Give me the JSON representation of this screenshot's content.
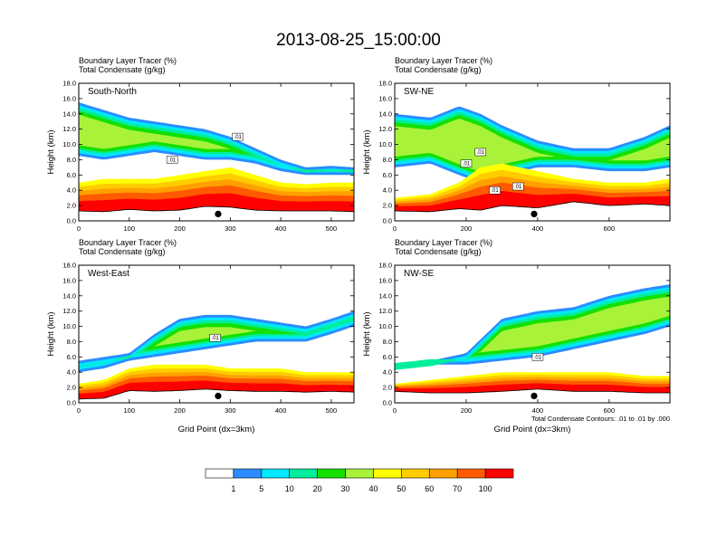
{
  "figure": {
    "title": "2013-08-25_15:00:00",
    "footnote": "Total Condensate Contours: .01 to .01 by .000"
  },
  "colorbar": {
    "labels": [
      "1",
      "5",
      "10",
      "20",
      "30",
      "40",
      "50",
      "60",
      "70",
      "100"
    ],
    "colors": [
      "#ffffff",
      "#2a8cff",
      "#00e8ff",
      "#00ee9c",
      "#14e000",
      "#a8f23a",
      "#ffff00",
      "#ffcc00",
      "#ffa000",
      "#ff5a00",
      "#ff0000"
    ]
  },
  "chart_data": [
    {
      "type": "heatmap",
      "name": "South-North",
      "subtitle_line1": "Boundary Layer Tracer   (%)",
      "subtitle_line2": "Total Condensate   (g/kg)",
      "xlabel": "",
      "ylabel": "Height (km)",
      "xlim": [
        0,
        545
      ],
      "ylim": [
        0,
        18
      ],
      "xticks": [
        0,
        100,
        200,
        300,
        400,
        500
      ],
      "yticks": [
        "0.0",
        "2.0",
        "4.0",
        "6.0",
        "8.0",
        "10.0",
        "12.0",
        "14.0",
        "16.0",
        "18.0"
      ],
      "marker_x": 276,
      "contour_labels": [
        {
          "x": 185,
          "y": 8.0,
          "text": ".01"
        },
        {
          "x": 315,
          "y": 11.0,
          "text": ".01"
        }
      ],
      "profile": [
        {
          "x": 0,
          "terrain": 1.3,
          "bl_top": 5.0,
          "upper_low": 8.5,
          "upper_high": 15.5
        },
        {
          "x": 50,
          "terrain": 1.2,
          "bl_top": 5.5,
          "upper_low": 8.0,
          "upper_high": 14.5
        },
        {
          "x": 100,
          "terrain": 1.5,
          "bl_top": 5.5,
          "upper_low": 8.5,
          "upper_high": 13.5
        },
        {
          "x": 150,
          "terrain": 1.3,
          "bl_top": 5.5,
          "upper_low": 9.0,
          "upper_high": 13.0
        },
        {
          "x": 200,
          "terrain": 1.4,
          "bl_top": 6.0,
          "upper_low": 8.5,
          "upper_high": 12.5
        },
        {
          "x": 250,
          "terrain": 1.9,
          "bl_top": 6.5,
          "upper_low": 8.0,
          "upper_high": 12.0
        },
        {
          "x": 300,
          "terrain": 1.8,
          "bl_top": 7.0,
          "upper_low": 8.0,
          "upper_high": 11.0
        },
        {
          "x": 350,
          "terrain": 1.4,
          "bl_top": 6.0,
          "upper_low": 7.5,
          "upper_high": 9.5
        },
        {
          "x": 400,
          "terrain": 1.3,
          "bl_top": 5.0,
          "upper_low": 6.5,
          "upper_high": 8.0
        },
        {
          "x": 450,
          "terrain": 1.3,
          "bl_top": 4.8,
          "upper_low": 6.0,
          "upper_high": 7.0
        },
        {
          "x": 500,
          "terrain": 1.3,
          "bl_top": 5.0,
          "upper_low": 6.0,
          "upper_high": 7.2
        },
        {
          "x": 545,
          "terrain": 1.2,
          "bl_top": 5.0,
          "upper_low": 6.0,
          "upper_high": 7.0
        }
      ]
    },
    {
      "type": "heatmap",
      "name": "SW-NE",
      "subtitle_line1": "Boundary Layer Tracer   (%)",
      "subtitle_line2": "Total Condensate   (g/kg)",
      "xlabel": "",
      "ylabel": "Height (km)",
      "xlim": [
        0,
        770
      ],
      "ylim": [
        0,
        18
      ],
      "xticks": [
        0,
        200,
        400,
        600
      ],
      "yticks": [
        "0.0",
        "2.0",
        "4.0",
        "6.0",
        "8.0",
        "10.0",
        "12.0",
        "14.0",
        "16.0",
        "18.0"
      ],
      "marker_x": 390,
      "contour_labels": [
        {
          "x": 240,
          "y": 9.0,
          "text": ".01"
        },
        {
          "x": 200,
          "y": 7.5,
          "text": ".01"
        },
        {
          "x": 280,
          "y": 4.0,
          "text": ".01"
        },
        {
          "x": 345,
          "y": 4.5,
          "text": ".01"
        }
      ],
      "profile": [
        {
          "x": 0,
          "terrain": 1.3,
          "bl_top": 3.0,
          "upper_low": 7.0,
          "upper_high": 14.0
        },
        {
          "x": 100,
          "terrain": 1.2,
          "bl_top": 3.5,
          "upper_low": 7.5,
          "upper_high": 13.5
        },
        {
          "x": 180,
          "terrain": 1.6,
          "bl_top": 5.0,
          "upper_low": 6.0,
          "upper_high": 15.0
        },
        {
          "x": 240,
          "terrain": 1.4,
          "bl_top": 7.0,
          "upper_low": 5.0,
          "upper_high": 14.0
        },
        {
          "x": 300,
          "terrain": 2.0,
          "bl_top": 7.5,
          "upper_low": 6.0,
          "upper_high": 12.5
        },
        {
          "x": 400,
          "terrain": 1.7,
          "bl_top": 6.5,
          "upper_low": 7.0,
          "upper_high": 10.5
        },
        {
          "x": 500,
          "terrain": 2.5,
          "bl_top": 5.5,
          "upper_low": 7.0,
          "upper_high": 9.5
        },
        {
          "x": 600,
          "terrain": 2.0,
          "bl_top": 5.0,
          "upper_low": 6.5,
          "upper_high": 9.5
        },
        {
          "x": 700,
          "terrain": 2.2,
          "bl_top": 5.0,
          "upper_low": 6.5,
          "upper_high": 11.0
        },
        {
          "x": 770,
          "terrain": 2.0,
          "bl_top": 5.5,
          "upper_low": 7.0,
          "upper_high": 12.5
        }
      ]
    },
    {
      "type": "heatmap",
      "name": "West-East",
      "subtitle_line1": "Boundary Layer Tracer   (%)",
      "subtitle_line2": "Total Condensate   (g/kg)",
      "xlabel": "Grid Point (dx=3km)",
      "ylabel": "Height (km)",
      "xlim": [
        0,
        545
      ],
      "ylim": [
        0,
        18
      ],
      "xticks": [
        0,
        100,
        200,
        300,
        400,
        500
      ],
      "yticks": [
        "0.0",
        "2.0",
        "4.0",
        "6.0",
        "8.0",
        "10.0",
        "12.0",
        "14.0",
        "16.0",
        "18.0"
      ],
      "marker_x": 276,
      "contour_labels": [
        {
          "x": 270,
          "y": 8.5,
          "text": ".01"
        }
      ],
      "profile": [
        {
          "x": 0,
          "terrain": 0.5,
          "bl_top": 2.5,
          "upper_low": 4.0,
          "upper_high": 5.5
        },
        {
          "x": 50,
          "terrain": 0.6,
          "bl_top": 3.0,
          "upper_low": 4.5,
          "upper_high": 6.0
        },
        {
          "x": 100,
          "terrain": 1.6,
          "bl_top": 4.5,
          "upper_low": 5.5,
          "upper_high": 6.5
        },
        {
          "x": 150,
          "terrain": 1.5,
          "bl_top": 5.0,
          "upper_low": 6.0,
          "upper_high": 9.0
        },
        {
          "x": 200,
          "terrain": 1.6,
          "bl_top": 5.0,
          "upper_low": 6.5,
          "upper_high": 11.0
        },
        {
          "x": 250,
          "terrain": 1.8,
          "bl_top": 5.0,
          "upper_low": 7.0,
          "upper_high": 11.5
        },
        {
          "x": 300,
          "terrain": 1.6,
          "bl_top": 4.5,
          "upper_low": 7.5,
          "upper_high": 11.5
        },
        {
          "x": 350,
          "terrain": 1.5,
          "bl_top": 4.5,
          "upper_low": 8.0,
          "upper_high": 11.0
        },
        {
          "x": 400,
          "terrain": 1.5,
          "bl_top": 4.5,
          "upper_low": 8.0,
          "upper_high": 10.5
        },
        {
          "x": 450,
          "terrain": 1.4,
          "bl_top": 4.0,
          "upper_low": 8.0,
          "upper_high": 10.0
        },
        {
          "x": 500,
          "terrain": 1.5,
          "bl_top": 4.0,
          "upper_low": 9.0,
          "upper_high": 11.0
        },
        {
          "x": 545,
          "terrain": 1.4,
          "bl_top": 4.0,
          "upper_low": 10.0,
          "upper_high": 12.0
        }
      ]
    },
    {
      "type": "heatmap",
      "name": "NW-SE",
      "subtitle_line1": "Boundary Layer Tracer   (%)",
      "subtitle_line2": "Total Condensate   (g/kg)",
      "xlabel": "Grid Point (dx=3km)",
      "ylabel": "Height (km)",
      "xlim": [
        0,
        770
      ],
      "ylim": [
        0,
        18
      ],
      "xticks": [
        0,
        200,
        400,
        600
      ],
      "yticks": [
        "0.0",
        "2.0",
        "4.0",
        "6.0",
        "8.0",
        "10.0",
        "12.0",
        "14.0",
        "16.0",
        "18.0"
      ],
      "marker_x": 390,
      "contour_labels": [
        {
          "x": 400,
          "y": 6.0,
          "text": ".01"
        }
      ],
      "profile": [
        {
          "x": 0,
          "terrain": 1.5,
          "bl_top": 2.5,
          "upper_low": 4.5,
          "upper_high": 5.0
        },
        {
          "x": 100,
          "terrain": 1.3,
          "bl_top": 3.0,
          "upper_low": 5.0,
          "upper_high": 5.5
        },
        {
          "x": 200,
          "terrain": 1.3,
          "bl_top": 3.5,
          "upper_low": 5.0,
          "upper_high": 6.5
        },
        {
          "x": 300,
          "terrain": 1.5,
          "bl_top": 4.0,
          "upper_low": 5.5,
          "upper_high": 11.0
        },
        {
          "x": 400,
          "terrain": 1.8,
          "bl_top": 4.0,
          "upper_low": 6.0,
          "upper_high": 12.0
        },
        {
          "x": 500,
          "terrain": 1.5,
          "bl_top": 4.0,
          "upper_low": 7.0,
          "upper_high": 12.5
        },
        {
          "x": 600,
          "terrain": 1.5,
          "bl_top": 4.0,
          "upper_low": 8.0,
          "upper_high": 14.0
        },
        {
          "x": 700,
          "terrain": 1.3,
          "bl_top": 3.5,
          "upper_low": 9.0,
          "upper_high": 15.0
        },
        {
          "x": 770,
          "terrain": 1.3,
          "bl_top": 3.5,
          "upper_low": 10.0,
          "upper_high": 15.5
        }
      ]
    }
  ]
}
